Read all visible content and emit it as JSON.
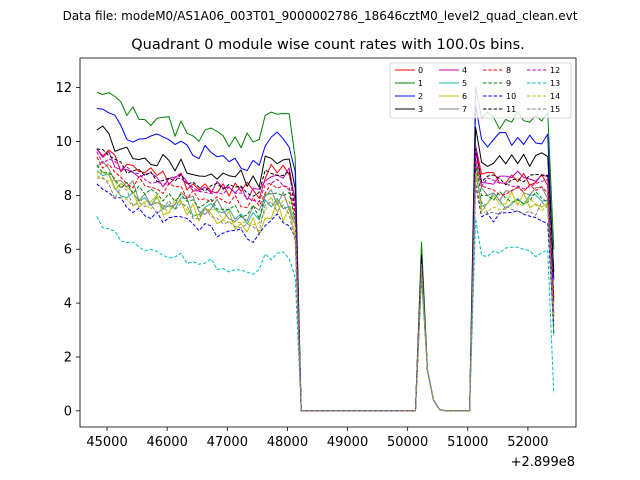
{
  "chart_data": {
    "type": "line",
    "suptitle": "Data file: modeM0/AS1A06_003T01_9000002786_18646cztM0_level2_quad_clean.evt",
    "title": "Quadrant 0 module wise count rates with 100.0s bins.",
    "xlabel": "",
    "ylabel": "",
    "x_offset_label": "+2.899e8",
    "xlim": [
      44550,
      52800
    ],
    "ylim": [
      -0.6,
      13.1
    ],
    "xticks": [
      45000,
      46000,
      47000,
      48000,
      49000,
      50000,
      51000,
      52000
    ],
    "yticks": [
      0,
      2,
      4,
      6,
      8,
      10,
      12
    ],
    "legend_location": "upper right",
    "legend_columns": 4,
    "segments": [
      {
        "start": 44830,
        "count": 34
      },
      {
        "start": 48230,
        "count": 20
      },
      {
        "start": 50130,
        "count": 10
      },
      {
        "start": 51130,
        "count": 14
      }
    ],
    "series": [
      {
        "name": "0",
        "color": "#ff0000",
        "dash": "solid",
        "base": 9.0,
        "slope": -0.33,
        "noise": 0.5,
        "dip": 0.1
      },
      {
        "name": "1",
        "color": "#008000",
        "dash": "solid",
        "base": 11.2,
        "slope": -0.45,
        "noise": 0.6,
        "dip": 0.25
      },
      {
        "name": "2",
        "color": "#0000ff",
        "dash": "solid",
        "base": 10.5,
        "slope": -0.45,
        "noise": 0.5,
        "dip": 0.2
      },
      {
        "name": "3",
        "color": "#000000",
        "dash": "solid",
        "base": 9.7,
        "slope": -0.4,
        "noise": 0.5,
        "dip": 0.15
      },
      {
        "name": "4",
        "color": "#c000c0",
        "dash": "solid",
        "base": 9.0,
        "slope": -0.35,
        "noise": 0.5,
        "dip": 0.1
      },
      {
        "name": "5",
        "color": "#20b2aa",
        "dash": "solid",
        "base": 8.2,
        "slope": -0.38,
        "noise": 0.5,
        "dip": 0.05
      },
      {
        "name": "6",
        "color": "#bfbf00",
        "dash": "solid",
        "base": 8.2,
        "slope": -0.45,
        "noise": 0.6,
        "dip": 0.05
      },
      {
        "name": "7",
        "color": "#808080",
        "dash": "solid",
        "base": 8.4,
        "slope": -0.4,
        "noise": 0.6,
        "dip": 0.05
      },
      {
        "name": "8",
        "color": "#ff0000",
        "dash": "dashed",
        "base": 8.6,
        "slope": -0.35,
        "noise": 0.4,
        "dip": 0.05
      },
      {
        "name": "9",
        "color": "#008000",
        "dash": "dashed",
        "base": 8.3,
        "slope": -0.35,
        "noise": 0.4,
        "dip": 0.05
      },
      {
        "name": "10",
        "color": "#0000ff",
        "dash": "dashed",
        "base": 7.6,
        "slope": -0.4,
        "noise": 0.4,
        "dip": 0.05
      },
      {
        "name": "11",
        "color": "#000000",
        "dash": "dashed",
        "base": 8.9,
        "slope": -0.3,
        "noise": 0.4,
        "dip": 0.1
      },
      {
        "name": "12",
        "color": "#c000c0",
        "dash": "dashed",
        "base": 8.8,
        "slope": -0.32,
        "noise": 0.4,
        "dip": 0.05
      },
      {
        "name": "13",
        "color": "#00bfbf",
        "dash": "dashed",
        "base": 6.3,
        "slope": -0.4,
        "noise": 0.3,
        "dip": 0.05
      },
      {
        "name": "14",
        "color": "#bfbf00",
        "dash": "dashed",
        "base": 8.0,
        "slope": -0.35,
        "noise": 0.5,
        "dip": 0.05
      },
      {
        "name": "15",
        "color": "#808080",
        "dash": "dashed",
        "base": 7.9,
        "slope": -0.35,
        "noise": 0.5,
        "dip": 0.05
      }
    ]
  }
}
